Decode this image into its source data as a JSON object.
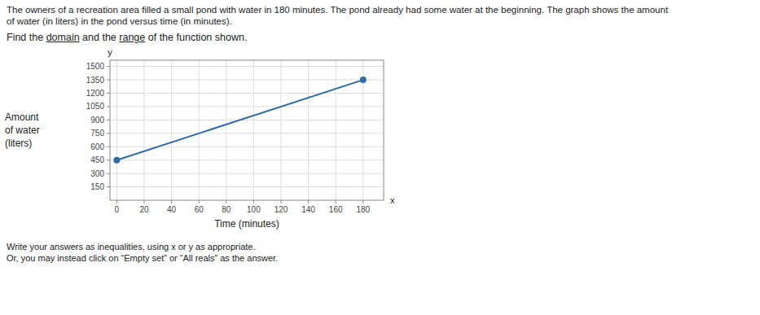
{
  "chart_data": {
    "type": "line",
    "title": [
      "The owners of a recreation area filled a small pond with water in 180 minutes. The pond already had some water at the beginning. The graph shows the amount",
      "of water (in liters) in the pond versus time (in minutes)."
    ],
    "subtitle": [
      "Find the ",
      "domain",
      " and the ",
      "range",
      " of the function shown."
    ],
    "ylabel": [
      "Amount",
      "of water",
      "(liters)"
    ],
    "xlabel": "Time (minutes)",
    "annotations": [
      "y",
      "x"
    ],
    "footer": [
      "Write your answers as inequalities, using x or y as appropriate.",
      "Or, you may instead click on “Empty set” or “All reals” as the answer."
    ],
    "x": [
      0,
      180
    ],
    "series": [
      {
        "values": [
          450,
          1350
        ],
        "color": "#2e6da4",
        "marker": "circle"
      }
    ],
    "xlim": [
      -5,
      195
    ],
    "ylim": [
      0,
      1570
    ],
    "xticks": [
      0,
      20,
      40,
      60,
      80,
      100,
      120,
      140,
      160,
      180
    ],
    "yticks": [
      150,
      300,
      450,
      600,
      750,
      900,
      1050,
      1200,
      1350,
      1500
    ],
    "grid": true
  }
}
